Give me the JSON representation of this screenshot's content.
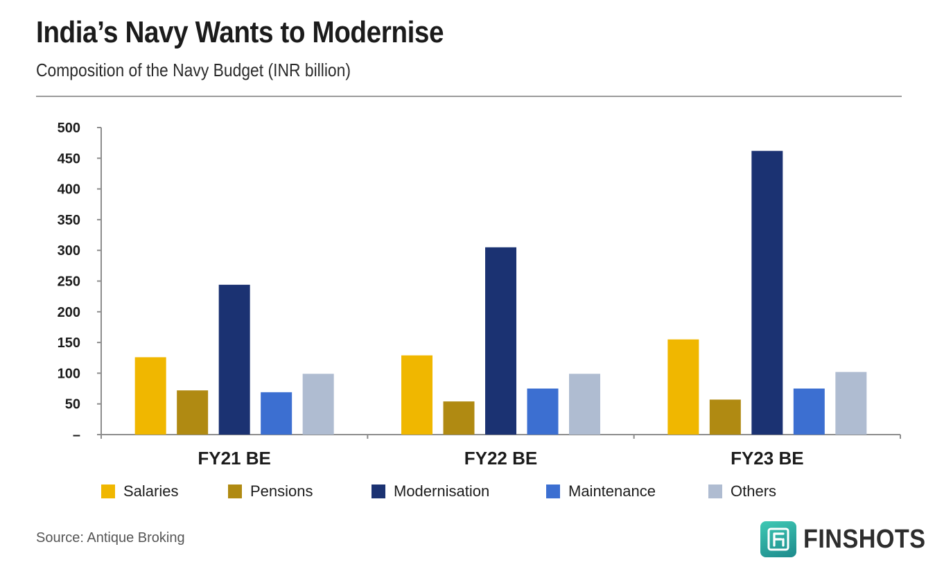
{
  "header": {
    "title": "India’s Navy Wants to Modernise",
    "subtitle": "Composition of the Navy Budget (INR billion)"
  },
  "footer": {
    "source": "Source: Antique Broking",
    "brand": "FINSHOTS"
  },
  "chart_data": {
    "type": "bar",
    "title": "India’s Navy Wants to Modernise",
    "subtitle": "Composition of the Navy Budget (INR billion)",
    "categories": [
      "FY21 BE",
      "FY22 BE",
      "FY23 BE"
    ],
    "series": [
      {
        "name": "Salaries",
        "color": "#F0B700",
        "values": [
          126,
          129,
          155
        ]
      },
      {
        "name": "Pensions",
        "color": "#B08A12",
        "values": [
          72,
          54,
          57
        ]
      },
      {
        "name": "Modernisation",
        "color": "#1B3272",
        "values": [
          244,
          305,
          462
        ]
      },
      {
        "name": "Maintenance",
        "color": "#3C6FD1",
        "values": [
          69,
          75,
          75
        ]
      },
      {
        "name": "Others",
        "color": "#AFBCD1",
        "values": [
          99,
          99,
          102
        ]
      }
    ],
    "ylim": [
      0,
      500
    ],
    "yticks": [
      500,
      450,
      400,
      350,
      300,
      250,
      200,
      150,
      100,
      50,
      0
    ],
    "ytick_labels": [
      "500",
      "450",
      "400",
      "350",
      "300",
      "250",
      "200",
      "150",
      "100",
      "50",
      "–"
    ],
    "xlabel": "",
    "ylabel": "",
    "grid": false,
    "legend_position": "bottom"
  }
}
